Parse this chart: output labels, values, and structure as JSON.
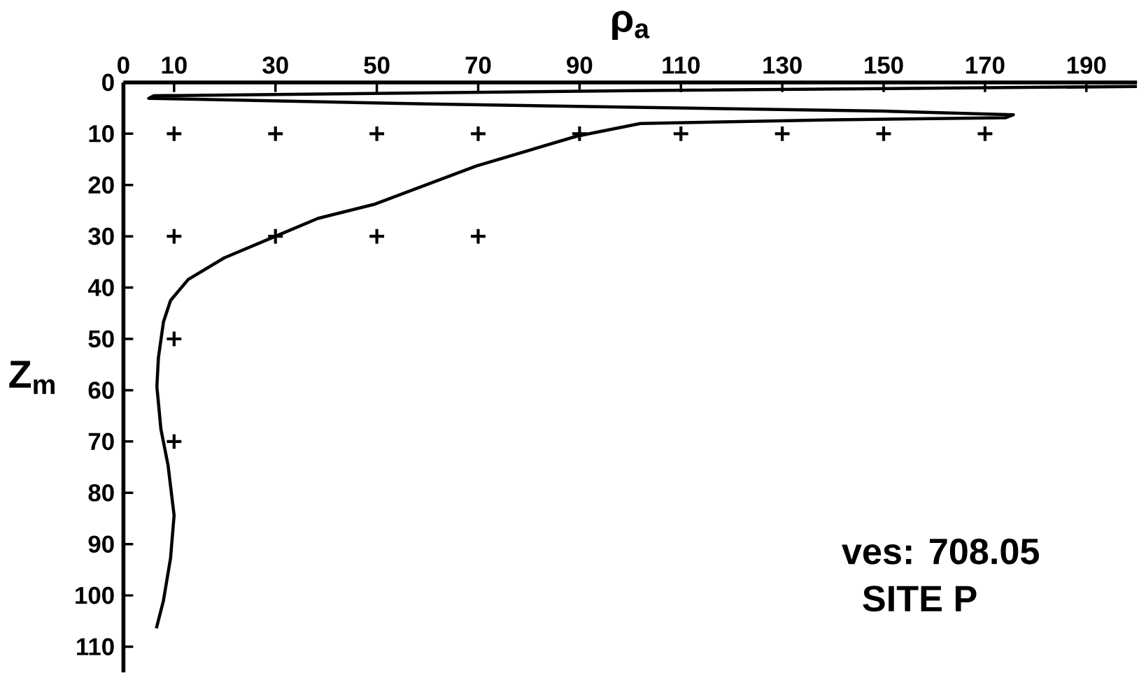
{
  "chart_data": {
    "type": "line",
    "xlabel": "ρ$_{a}$",
    "ylabel": "Z$_{m}$",
    "xlim": [
      0,
      200
    ],
    "ylim": [
      115,
      0
    ],
    "xticks": [
      0,
      10,
      30,
      50,
      70,
      90,
      110,
      130,
      150,
      170,
      190
    ],
    "yticks": [
      0,
      10,
      20,
      30,
      40,
      50,
      60,
      70,
      80,
      90,
      100,
      110
    ],
    "annotations": [
      "ves: 708.05",
      "SITE P"
    ],
    "series": [
      {
        "type": "line",
        "color": "#000000",
        "marker": "none",
        "line_style": "solid",
        "x": [
          200,
          100,
          6,
          5,
          60,
          150,
          175.6,
          174,
          140,
          102,
          89.4,
          69.6,
          49.7,
          38.4,
          30,
          19.9,
          12.8,
          9.3,
          7.9,
          6.9,
          6.6,
          7.4,
          8.8,
          10,
          9.3,
          7.9,
          6.5
        ],
        "values": [
          0.8,
          1.6,
          2.6,
          3.1,
          4.2,
          5.6,
          6.3,
          6.9,
          7.3,
          8,
          10.5,
          16.3,
          23.7,
          26.5,
          30,
          34.2,
          38.4,
          42.5,
          46.7,
          53.7,
          59.3,
          67.6,
          74.6,
          84.4,
          92.7,
          101,
          106.4
        ]
      },
      {
        "type": "scatter",
        "color": "#000000",
        "marker": "cross",
        "x": [
          10,
          30,
          50,
          70,
          90,
          110,
          130,
          150,
          170,
          10,
          30,
          50,
          70,
          10,
          10
        ],
        "values": [
          10,
          10,
          10,
          10,
          10,
          10,
          10,
          10,
          10,
          30,
          30,
          30,
          30,
          50,
          70
        ]
      }
    ]
  }
}
